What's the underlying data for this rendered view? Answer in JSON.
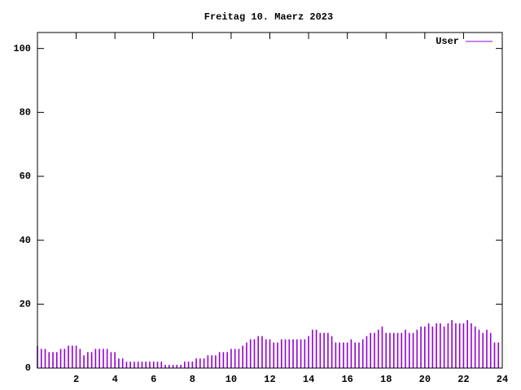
{
  "chart_data": {
    "type": "impulses",
    "title": "Freitag 10. Maerz 2023",
    "series": [
      {
        "name": "User",
        "color": "#9400d3",
        "x": [
          0,
          0.2,
          0.4,
          0.6,
          0.8,
          1,
          1.2,
          1.4,
          1.6,
          1.8,
          2,
          2.2,
          2.4,
          2.6,
          2.8,
          3,
          3.2,
          3.4,
          3.6,
          3.8,
          4,
          4.2,
          4.4,
          4.6,
          4.8,
          5,
          5.2,
          5.4,
          5.6,
          5.8,
          6,
          6.2,
          6.4,
          6.6,
          6.8,
          7,
          7.2,
          7.4,
          7.6,
          7.8,
          8,
          8.2,
          8.4,
          8.6,
          8.8,
          9,
          9.2,
          9.4,
          9.6,
          9.8,
          10,
          10.2,
          10.4,
          10.6,
          10.8,
          11,
          11.2,
          11.4,
          11.6,
          11.8,
          12,
          12.2,
          12.4,
          12.6,
          12.8,
          13,
          13.2,
          13.4,
          13.6,
          13.8,
          14,
          14.2,
          14.4,
          14.6,
          14.8,
          15,
          15.2,
          15.4,
          15.6,
          15.8,
          16,
          16.2,
          16.4,
          16.6,
          16.8,
          17,
          17.2,
          17.4,
          17.6,
          17.8,
          18,
          18.2,
          18.4,
          18.6,
          18.8,
          19,
          19.2,
          19.4,
          19.6,
          19.8,
          20,
          20.2,
          20.4,
          20.6,
          20.8,
          21,
          21.2,
          21.4,
          21.6,
          21.8,
          22,
          22.2,
          22.4,
          22.6,
          22.8,
          23,
          23.2,
          23.4,
          23.6,
          23.8
        ],
        "values": [
          7,
          6,
          6,
          5,
          5,
          5,
          6,
          6,
          7,
          7,
          7,
          6,
          4,
          5,
          5,
          6,
          6,
          6,
          6,
          5,
          5,
          3,
          3,
          2,
          2,
          2,
          2,
          2,
          2,
          2,
          2,
          2,
          2,
          1,
          1,
          1,
          1,
          1,
          2,
          2,
          2,
          3,
          3,
          3,
          4,
          4,
          4,
          5,
          5,
          5,
          6,
          6,
          6,
          7,
          8,
          9,
          9,
          10,
          10,
          9,
          9,
          8,
          8,
          9,
          9,
          9,
          9,
          9,
          9,
          9,
          10,
          12,
          12,
          11,
          11,
          11,
          10,
          8,
          8,
          8,
          8,
          9,
          8,
          8,
          9,
          10,
          11,
          11,
          12,
          13,
          11,
          11,
          11,
          11,
          11,
          12,
          11,
          11,
          12,
          13,
          13,
          14,
          13,
          14,
          14,
          13,
          14,
          15,
          14,
          14,
          14,
          15,
          14,
          13,
          12,
          11,
          12,
          11,
          8,
          8
        ]
      }
    ],
    "xlim": [
      0,
      24
    ],
    "xticks": [
      2,
      4,
      6,
      8,
      10,
      12,
      14,
      16,
      18,
      20,
      22,
      24
    ],
    "ylim": [
      0,
      105
    ],
    "yticks": [
      0,
      20,
      40,
      60,
      80,
      100
    ],
    "legend": "top-right"
  }
}
